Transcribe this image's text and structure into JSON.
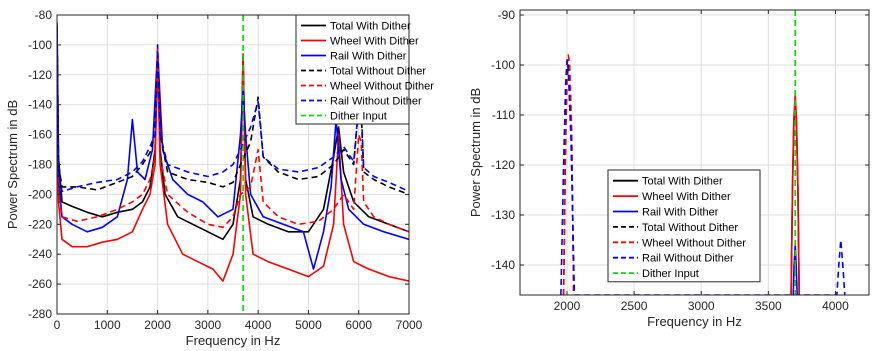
{
  "chart_data": [
    {
      "type": "line",
      "xlabel": "Frequency in Hz",
      "ylabel": "Power Spectrum in dB",
      "xlim": [
        0,
        7000
      ],
      "ylim": [
        -280,
        -80
      ],
      "xticks": [
        "0",
        "1000",
        "2000",
        "3000",
        "4000",
        "5000",
        "6000",
        "7000"
      ],
      "yticks": [
        "-80",
        "-100",
        "-120",
        "-140",
        "-160",
        "-180",
        "-200",
        "-220",
        "-240",
        "-260",
        "-280"
      ],
      "grid": true,
      "legend_position": "top-right",
      "series": [
        {
          "name": "Total With Dither",
          "color": "#000000",
          "dash": "solid",
          "x": [
            0,
            30,
            100,
            300,
            600,
            900,
            1200,
            1500,
            1700,
            1850,
            1950,
            2000,
            2050,
            2150,
            2400,
            2700,
            3000,
            3300,
            3500,
            3650,
            3700,
            3750,
            3900,
            4200,
            4600,
            5000,
            5300,
            5500,
            5600,
            5700,
            5900,
            6200,
            6600,
            7000
          ],
          "y": [
            -85,
            -175,
            -205,
            -208,
            -212,
            -215,
            -212,
            -210,
            -205,
            -195,
            -170,
            -107,
            -170,
            -200,
            -215,
            -220,
            -225,
            -230,
            -220,
            -190,
            -107,
            -190,
            -215,
            -220,
            -225,
            -225,
            -210,
            -175,
            -155,
            -185,
            -205,
            -215,
            -220,
            -225
          ]
        },
        {
          "name": "Wheel With Dither",
          "color": "#ff0000",
          "dash": "solid",
          "x": [
            0,
            30,
            100,
            300,
            600,
            900,
            1200,
            1500,
            1700,
            1850,
            1950,
            2000,
            2050,
            2200,
            2500,
            2800,
            3100,
            3300,
            3500,
            3650,
            3700,
            3750,
            3900,
            4200,
            4600,
            5000,
            5300,
            5500,
            5600,
            5700,
            5900,
            6200,
            6600,
            7000
          ],
          "y": [
            -90,
            -205,
            -230,
            -235,
            -235,
            -232,
            -230,
            -225,
            -210,
            -200,
            -180,
            -105,
            -180,
            -220,
            -240,
            -245,
            -250,
            -258,
            -240,
            -200,
            -106,
            -200,
            -240,
            -245,
            -250,
            -255,
            -248,
            -220,
            -160,
            -220,
            -245,
            -250,
            -255,
            -258
          ]
        },
        {
          "name": "Rail With Dither",
          "color": "#0000ff",
          "dash": "solid",
          "x": [
            0,
            30,
            100,
            300,
            600,
            900,
            1200,
            1400,
            1500,
            1600,
            1750,
            1900,
            2000,
            2100,
            2300,
            2600,
            2900,
            3200,
            3500,
            3650,
            3700,
            3750,
            3850,
            4100,
            4500,
            4900,
            5100,
            5300,
            5450,
            5550,
            5650,
            5800,
            6100,
            6500,
            7000
          ],
          "y": [
            -87,
            -190,
            -215,
            -220,
            -225,
            -222,
            -215,
            -190,
            -150,
            -185,
            -190,
            -170,
            -103,
            -170,
            -190,
            -200,
            -205,
            -215,
            -210,
            -160,
            -130,
            -160,
            -200,
            -215,
            -220,
            -225,
            -250,
            -225,
            -195,
            -150,
            -190,
            -210,
            -220,
            -225,
            -230
          ]
        },
        {
          "name": "Total Without Dither",
          "color": "#000000",
          "dash": "dashed",
          "x": [
            0,
            30,
            100,
            400,
            800,
            1200,
            1500,
            1700,
            1850,
            1950,
            2000,
            2050,
            2200,
            2600,
            3000,
            3300,
            3500,
            3650,
            3850,
            4000,
            4100,
            4400,
            4800,
            5200,
            5500,
            5700,
            5900,
            6000,
            6050,
            6100,
            6300,
            6600,
            7000
          ],
          "y": [
            -87,
            -180,
            -195,
            -195,
            -197,
            -192,
            -188,
            -180,
            -172,
            -160,
            -105,
            -160,
            -185,
            -190,
            -192,
            -195,
            -192,
            -180,
            -165,
            -135,
            -175,
            -185,
            -190,
            -188,
            -180,
            -170,
            -180,
            -140,
            -145,
            -185,
            -190,
            -195,
            -200
          ]
        },
        {
          "name": "Wheel Without Dither",
          "color": "#ff0000",
          "dash": "dashed",
          "x": [
            0,
            30,
            100,
            400,
            800,
            1200,
            1500,
            1700,
            1850,
            1950,
            2000,
            2050,
            2200,
            2600,
            3000,
            3300,
            3500,
            3650,
            3850,
            4000,
            4100,
            4400,
            4800,
            5200,
            5500,
            5700,
            5900,
            6000,
            6050,
            6100,
            6300,
            6600,
            7000
          ],
          "y": [
            -95,
            -200,
            -215,
            -218,
            -215,
            -210,
            -205,
            -200,
            -190,
            -175,
            -100,
            -175,
            -200,
            -212,
            -220,
            -222,
            -215,
            -200,
            -195,
            -170,
            -205,
            -215,
            -220,
            -218,
            -210,
            -200,
            -210,
            -160,
            -165,
            -205,
            -215,
            -220,
            -225
          ]
        },
        {
          "name": "Rail Without Dither",
          "color": "#0000ff",
          "dash": "dashed",
          "x": [
            0,
            30,
            100,
            400,
            800,
            1200,
            1500,
            1700,
            1850,
            1950,
            2000,
            2050,
            2200,
            2600,
            3000,
            3300,
            3500,
            3650,
            3850,
            4000,
            4100,
            4400,
            4800,
            5200,
            5500,
            5700,
            5900,
            6000,
            6050,
            6100,
            6300,
            6600,
            7000
          ],
          "y": [
            -88,
            -185,
            -198,
            -195,
            -192,
            -190,
            -185,
            -178,
            -168,
            -160,
            -100,
            -160,
            -180,
            -185,
            -188,
            -185,
            -180,
            -170,
            -155,
            -138,
            -175,
            -183,
            -185,
            -182,
            -175,
            -168,
            -178,
            -140,
            -142,
            -182,
            -188,
            -192,
            -198
          ]
        },
        {
          "name": "Dither Input",
          "color": "#00dd00",
          "dash": "dashed",
          "x": [
            3700,
            3700
          ],
          "y": [
            -80,
            -280
          ]
        }
      ]
    },
    {
      "type": "line",
      "xlabel": "Frequency in Hz",
      "ylabel": "Power Spectrum in dB",
      "xlim": [
        1650,
        4250
      ],
      "ylim": [
        -146,
        -89
      ],
      "xticks": [
        "2000",
        "2500",
        "3000",
        "3500",
        "4000"
      ],
      "yticks": [
        "-90",
        "-100",
        "-110",
        "-120",
        "-130",
        "-140"
      ],
      "grid": true,
      "legend_position": "bottom-center",
      "series": [
        {
          "name": "Total With Dither",
          "color": "#000000",
          "dash": "solid",
          "x": [
            3670,
            3680,
            3690,
            3700,
            3710,
            3720,
            3730
          ],
          "y": [
            -146,
            -125,
            -112,
            -107,
            -112,
            -125,
            -146
          ]
        },
        {
          "name": "Wheel With Dither",
          "color": "#ff0000",
          "dash": "solid",
          "x": [
            3670,
            3680,
            3690,
            3700,
            3710,
            3720,
            3730
          ],
          "y": [
            -146,
            -124,
            -111,
            -106,
            -111,
            -124,
            -146
          ]
        },
        {
          "name": "Rail With Dither",
          "color": "#0000ff",
          "dash": "solid",
          "x": [
            3685,
            3692,
            3700,
            3708,
            3715
          ],
          "y": [
            -146,
            -140,
            -136,
            -140,
            -146
          ]
        },
        {
          "name": "Total Without Dither",
          "color": "#000000",
          "dash": "dashed",
          "x": [
            1975,
            1990,
            2000,
            2010,
            2020,
            2035,
            2050
          ],
          "y": [
            -146,
            -115,
            -103,
            -100,
            -103,
            -115,
            -146
          ]
        },
        {
          "name": "Wheel Without Dither",
          "color": "#ff0000",
          "dash": "dashed",
          "x": [
            1975,
            1990,
            2000,
            2010,
            2020,
            2035,
            2050
          ],
          "y": [
            -146,
            -113,
            -100,
            -98,
            -100,
            -113,
            -146
          ]
        },
        {
          "name": "Rail Without Dither",
          "color": "#0000ff",
          "dash": "dashed",
          "x": [
            1955,
            1975,
            1990,
            2000,
            2010,
            2030,
            2055,
            4010,
            4025,
            4040,
            4055,
            4070
          ],
          "y": [
            -146,
            -120,
            -104,
            -99,
            -101,
            -115,
            -146,
            -146,
            -140,
            -135,
            -140,
            -146
          ]
        },
        {
          "name": "Dither Input",
          "color": "#00dd00",
          "dash": "dashed",
          "x": [
            3700,
            3700
          ],
          "y": [
            -89,
            -146
          ]
        }
      ]
    }
  ]
}
